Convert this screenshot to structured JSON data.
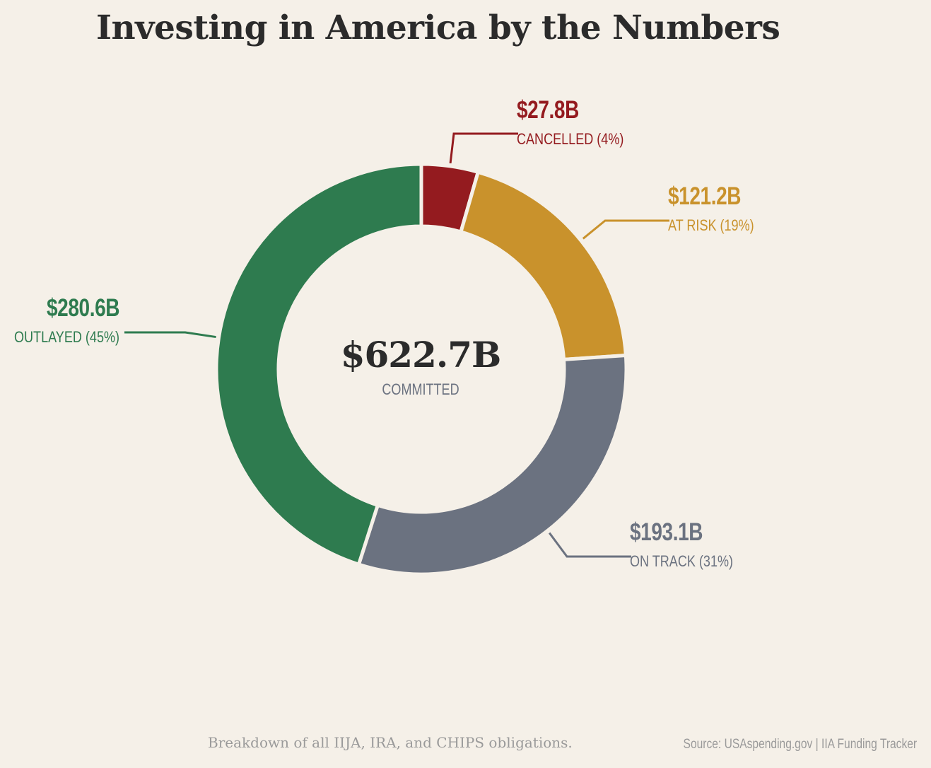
{
  "title": "Investing in America by the Numbers",
  "center": {
    "total": "$622.7B",
    "label": "COMMITTED"
  },
  "footer": {
    "note": "Breakdown of all IIJA, IRA, and CHIPS obligations.",
    "source": "Source: USAspending.gov  |  IIA Funding Tracker"
  },
  "chart_data": {
    "type": "pie",
    "donut": true,
    "title": "Investing in America by the Numbers",
    "total": 622.7,
    "unit": "$B",
    "slices": [
      {
        "key": "cancelled",
        "amount": "$27.8B",
        "caption": "CANCELLED  (4%)",
        "value": 27.8,
        "percent": 4,
        "color": "#941b1f"
      },
      {
        "key": "at_risk",
        "amount": "$121.2B",
        "caption": "AT RISK  (19%)",
        "value": 121.2,
        "percent": 19,
        "color": "#c9922c"
      },
      {
        "key": "on_track",
        "amount": "$193.1B",
        "caption": "ON TRACK  (31%)",
        "value": 193.1,
        "percent": 31,
        "color": "#6b7280"
      },
      {
        "key": "outlayed",
        "amount": "$280.6B",
        "caption": "OUTLAYED  (45%)",
        "value": 280.6,
        "percent": 45,
        "color": "#2e7b4f"
      }
    ]
  }
}
